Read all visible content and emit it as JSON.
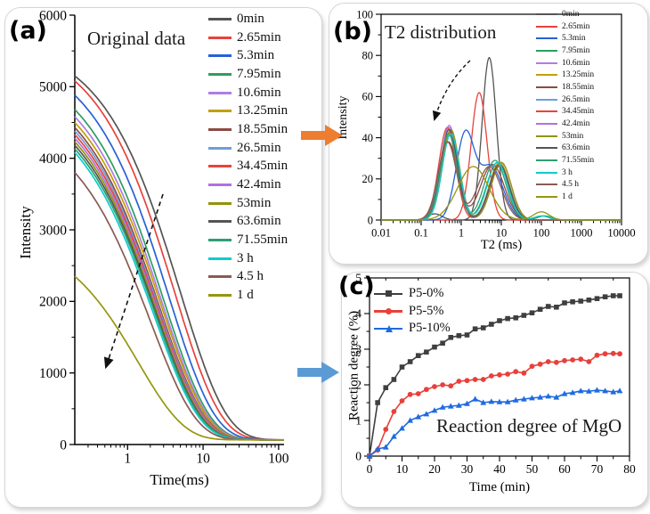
{
  "panels": {
    "a": {
      "label": "(a)",
      "title": "Original data",
      "xlabel": "Time(ms)",
      "ylabel": "Intensity"
    },
    "b": {
      "label": "(b)",
      "title": "T2 distribution",
      "xlabel": "T2 (ms)",
      "ylabel": "Intensity"
    },
    "c": {
      "label": "(c)",
      "title": "Reaction degree of MgO",
      "xlabel": "Time (min)",
      "ylabel": "Reaction degree (%)"
    }
  },
  "arrows": {
    "a_to_b_color": "#ED7D31",
    "a_to_c_color": "#5B9BD5",
    "annotation_color": "#111111"
  },
  "chart_data": [
    {
      "id": "a",
      "type": "line",
      "title": "Original data",
      "xlabel": "Time(ms)",
      "ylabel": "Intensity",
      "xscale": "log",
      "xlim": [
        0.2,
        118
      ],
      "ylim": [
        0,
        6000
      ],
      "xticks": [
        1,
        10,
        100
      ],
      "yticks": [
        0,
        1000,
        2000,
        3000,
        4000,
        5000,
        6000
      ],
      "annotation": "dashed arrow pointing down-left: intensity decreases with reaction time",
      "model": "stretched exponential decay: I(t)=amp*exp(-(t/tau)^0.72)+baseline",
      "baseline": 65,
      "stretch_exponent": 0.72,
      "series": [
        {
          "name": "0min",
          "color": "#545454",
          "start_intensity": 5150,
          "tau_ms": 5.0
        },
        {
          "name": "2.65min",
          "color": "#E8423B",
          "start_intensity": 5080,
          "tau_ms": 4.2
        },
        {
          "name": "5.3min",
          "color": "#2760D8",
          "start_intensity": 4880,
          "tau_ms": 3.5
        },
        {
          "name": "7.95min",
          "color": "#2D9E5F",
          "start_intensity": 4680,
          "tau_ms": 3.0
        },
        {
          "name": "10.6min",
          "color": "#AE7EE3",
          "start_intensity": 4580,
          "tau_ms": 2.85
        },
        {
          "name": "13.25min",
          "color": "#C39E06",
          "start_intensity": 4500,
          "tau_ms": 2.75
        },
        {
          "name": "18.55min",
          "color": "#8C4A41",
          "start_intensity": 4430,
          "tau_ms": 2.6
        },
        {
          "name": "26.5min",
          "color": "#6E9FD8",
          "start_intensity": 4380,
          "tau_ms": 2.55
        },
        {
          "name": "34.45min",
          "color": "#E8433D",
          "start_intensity": 4330,
          "tau_ms": 2.5
        },
        {
          "name": "42.4min",
          "color": "#B071E0",
          "start_intensity": 4280,
          "tau_ms": 2.45
        },
        {
          "name": "53min",
          "color": "#93930B",
          "start_intensity": 4230,
          "tau_ms": 2.4
        },
        {
          "name": "63.6min",
          "color": "#555555",
          "start_intensity": 4180,
          "tau_ms": 2.35
        },
        {
          "name": "71.55min",
          "color": "#2F9E73",
          "start_intensity": 4130,
          "tau_ms": 2.3
        },
        {
          "name": "3 h",
          "color": "#10CBCB",
          "start_intensity": 4080,
          "tau_ms": 2.2
        },
        {
          "name": "4.5 h",
          "color": "#8A5A54",
          "start_intensity": 3800,
          "tau_ms": 2.0
        },
        {
          "name": "1 d",
          "color": "#96960F",
          "start_intensity": 2350,
          "tau_ms": 1.4
        }
      ]
    },
    {
      "id": "b",
      "type": "line",
      "title": "T2 distribution",
      "xlabel": "T2 (ms)",
      "ylabel": "Intensity",
      "xscale": "log",
      "xlim": [
        0.01,
        10000
      ],
      "ylim": [
        0,
        100
      ],
      "xticks": [
        0.01,
        0.1,
        1,
        10,
        100,
        1000,
        10000
      ],
      "yticks": [
        0,
        20,
        40,
        60,
        80,
        100
      ],
      "annotation": "curved dashed arrow pointing down-left: T2 peak shifts left and lowers with reaction time",
      "model": "sum of log-gaussian peaks; each peak = [center_ms, log10_width, height]",
      "series": [
        {
          "name": "0min",
          "color": "#545454",
          "peaks": [
            [
              0.22,
              0.25,
              3
            ],
            [
              5,
              0.25,
              79
            ]
          ]
        },
        {
          "name": "2.65min",
          "color": "#E8423B",
          "peaks": [
            [
              2.8,
              0.28,
              62
            ]
          ]
        },
        {
          "name": "5.3min",
          "color": "#2760D8",
          "peaks": [
            [
              1.25,
              0.32,
              41
            ],
            [
              5.5,
              0.42,
              26
            ]
          ]
        },
        {
          "name": "7.95min",
          "color": "#2D9E5F",
          "peaks": [
            [
              0.5,
              0.3,
              42
            ],
            [
              8,
              0.38,
              28
            ]
          ]
        },
        {
          "name": "10.6min",
          "color": "#AE7EE3",
          "peaks": [
            [
              0.5,
              0.3,
              45
            ],
            [
              9,
              0.36,
              27
            ]
          ]
        },
        {
          "name": "13.25min",
          "color": "#C39E06",
          "peaks": [
            [
              0.55,
              0.3,
              43
            ],
            [
              9,
              0.36,
              28
            ]
          ]
        },
        {
          "name": "18.55min",
          "color": "#8C4A41",
          "peaks": [
            [
              0.48,
              0.32,
              38
            ],
            [
              6,
              0.42,
              27
            ]
          ]
        },
        {
          "name": "26.5min",
          "color": "#6E9FD8",
          "peaks": [
            [
              0.52,
              0.3,
              41
            ],
            [
              9,
              0.36,
              27
            ],
            [
              110,
              0.25,
              2
            ]
          ]
        },
        {
          "name": "34.45min",
          "color": "#E8433D",
          "peaks": [
            [
              0.45,
              0.3,
              45
            ],
            [
              9,
              0.35,
              26
            ]
          ]
        },
        {
          "name": "42.4min",
          "color": "#B071E0",
          "peaks": [
            [
              0.5,
              0.3,
              46
            ],
            [
              10,
              0.35,
              28
            ]
          ]
        },
        {
          "name": "53min",
          "color": "#93930B",
          "peaks": [
            [
              0.55,
              0.3,
              44
            ],
            [
              10,
              0.35,
              28
            ]
          ]
        },
        {
          "name": "63.6min",
          "color": "#555555",
          "peaks": [
            [
              0.5,
              0.3,
              44
            ],
            [
              9,
              0.35,
              27
            ]
          ]
        },
        {
          "name": "71.55min",
          "color": "#2F9E73",
          "peaks": [
            [
              0.48,
              0.3,
              42
            ],
            [
              7,
              0.38,
              29
            ],
            [
              120,
              0.25,
              2
            ]
          ]
        },
        {
          "name": "3 h",
          "color": "#10CBCB",
          "peaks": [
            [
              0.55,
              0.3,
              42
            ],
            [
              8,
              0.36,
              28
            ],
            [
              100,
              0.25,
              2
            ]
          ]
        },
        {
          "name": "4.5 h",
          "color": "#8A5A54",
          "peaks": [
            [
              0.45,
              0.32,
              38
            ],
            [
              5,
              0.42,
              26
            ]
          ]
        },
        {
          "name": "1 d",
          "color": "#96960F",
          "peaks": [
            [
              2,
              0.55,
              26
            ],
            [
              100,
              0.28,
              4
            ]
          ]
        }
      ]
    },
    {
      "id": "c",
      "type": "scatter-line",
      "title": "Reaction degree of MgO",
      "xlabel": "Time (min)",
      "ylabel": "Reaction degree (%)",
      "xlim": [
        0,
        80
      ],
      "ylim": [
        0,
        5
      ],
      "xticks": [
        0,
        10,
        20,
        30,
        40,
        50,
        60,
        70,
        80
      ],
      "yticks": [
        0,
        1,
        2,
        3,
        4,
        5
      ],
      "x": [
        0,
        2.5,
        5,
        7.5,
        10,
        12.5,
        15,
        17.5,
        20,
        22.5,
        25,
        27.5,
        30,
        32.5,
        35,
        37.5,
        40,
        42.5,
        45,
        47.5,
        50,
        52.5,
        55,
        57.5,
        60,
        62.5,
        65,
        67.5,
        70,
        72.5,
        75,
        77
      ],
      "series": [
        {
          "name": "P5-0%",
          "color": "#3F3F3F",
          "marker": "square",
          "y": [
            0,
            1.5,
            1.92,
            2.15,
            2.5,
            2.65,
            2.82,
            2.92,
            3.06,
            3.17,
            3.33,
            3.38,
            3.4,
            3.57,
            3.6,
            3.7,
            3.8,
            3.86,
            3.88,
            3.95,
            4.02,
            4.12,
            4.2,
            4.18,
            4.3,
            4.33,
            4.35,
            4.38,
            4.42,
            4.47,
            4.5,
            4.5
          ]
        },
        {
          "name": "P5-5%",
          "color": "#E8403A",
          "marker": "circle",
          "y": [
            0,
            0.17,
            0.75,
            1.25,
            1.55,
            1.73,
            1.75,
            1.87,
            1.95,
            2.0,
            1.97,
            2.1,
            2.12,
            2.15,
            2.15,
            2.25,
            2.28,
            2.3,
            2.37,
            2.33,
            2.52,
            2.58,
            2.65,
            2.63,
            2.68,
            2.7,
            2.72,
            2.65,
            2.83,
            2.87,
            2.88,
            2.87
          ]
        },
        {
          "name": "P5-10%",
          "color": "#1E6BE0",
          "marker": "triangle",
          "y": [
            0,
            0.2,
            0.25,
            0.55,
            0.78,
            1.0,
            1.1,
            1.18,
            1.28,
            1.37,
            1.4,
            1.42,
            1.47,
            1.6,
            1.5,
            1.53,
            1.52,
            1.52,
            1.57,
            1.6,
            1.63,
            1.65,
            1.68,
            1.65,
            1.75,
            1.78,
            1.83,
            1.82,
            1.85,
            1.83,
            1.8,
            1.83
          ]
        }
      ]
    }
  ]
}
